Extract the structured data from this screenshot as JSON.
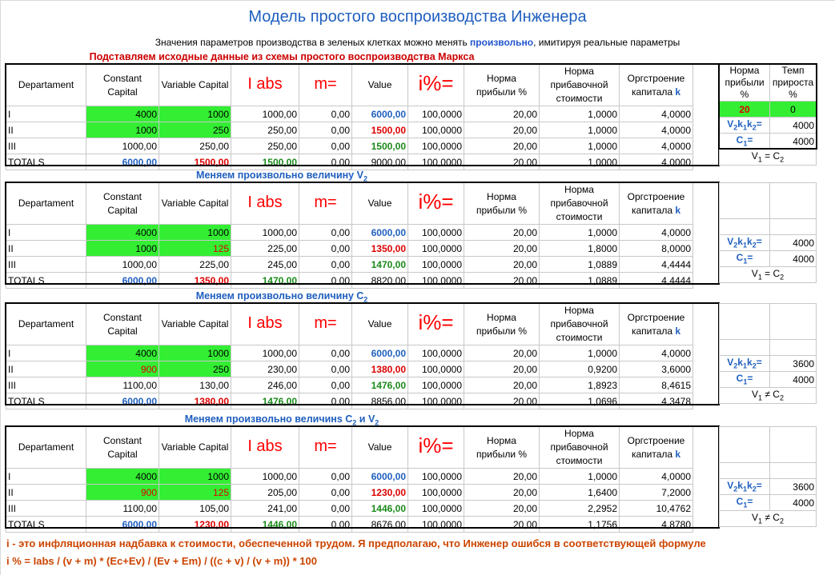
{
  "title": "Модель простого воспроизводства Инженера",
  "subtitle": {
    "before": "Значения параметров производства в зеленых клетках можно менять ",
    "highlight": "произвольно",
    "after": ", имитируя реальные параметры"
  },
  "headers": {
    "departament": "Departament",
    "constant": "Constant Capital",
    "variable": "Variable Capital",
    "iabs": "I abs",
    "m": "m=",
    "value": "Value",
    "ipct": "i%=",
    "profit": "Норма прибыли %",
    "surplus": "Норма прибавочной стоимости",
    "organic": "Оргстроение капитала ",
    "organic_k": "k"
  },
  "side": {
    "profit_header": "Норма прибыли %",
    "growth_header": "Темп прироста %",
    "profit_value": "20",
    "growth_value": "0",
    "v2k1k2_label": "V2k1k2=",
    "c1_label": "C1=",
    "v1_eq_c2": "V1 = C2",
    "v1_ne_c2": "V1 ≠ C2"
  },
  "blocks": [
    {
      "title": "Подставляем исходные данные из схемы простого воспроизводства Маркса",
      "rows": [
        [
          "I",
          "4000",
          "1000",
          "1000,00",
          "0,00",
          "6000,00",
          "100,0000",
          "20,00",
          "1,0000",
          "4,0000"
        ],
        [
          "II",
          "1000",
          "250",
          "250,00",
          "0,00",
          "1500,00",
          "100,0000",
          "20,00",
          "1,0000",
          "4,0000"
        ],
        [
          "III",
          "1000,00",
          "250,00",
          "250,00",
          "0,00",
          "1500,00",
          "100,0000",
          "20,00",
          "1,0000",
          "4,0000"
        ],
        [
          "TOTALS",
          "6000,00",
          "1500,00",
          "1500,00",
          "0,00",
          "9000,00",
          "100,0000",
          "20,00",
          "1,0000",
          "4,0000"
        ]
      ],
      "v2k": "4000",
      "c1": "4000"
    },
    {
      "title": "Меняем произвольно величину V2",
      "rows": [
        [
          "I",
          "4000",
          "1000",
          "1000,00",
          "0,00",
          "6000,00",
          "100,0000",
          "20,00",
          "1,0000",
          "4,0000"
        ],
        [
          "II",
          "1000",
          "125",
          "225,00",
          "0,00",
          "1350,00",
          "100,0000",
          "20,00",
          "1,8000",
          "8,0000"
        ],
        [
          "III",
          "1000,00",
          "225,00",
          "245,00",
          "0,00",
          "1470,00",
          "100,0000",
          "20,00",
          "1,0889",
          "4,4444"
        ],
        [
          "TOTALS",
          "6000,00",
          "1350,00",
          "1470,00",
          "0,00",
          "8820,00",
          "100,0000",
          "20,00",
          "1,0889",
          "4,4444"
        ]
      ],
      "v2k": "4000",
      "c1": "4000"
    },
    {
      "title": "Меняем произвольно величину C2",
      "rows": [
        [
          "I",
          "4000",
          "1000",
          "1000,00",
          "0,00",
          "6000,00",
          "100,0000",
          "20,00",
          "1,0000",
          "4,0000"
        ],
        [
          "II",
          "900",
          "250",
          "230,00",
          "0,00",
          "1380,00",
          "100,0000",
          "20,00",
          "0,9200",
          "3,6000"
        ],
        [
          "III",
          "1100,00",
          "130,00",
          "246,00",
          "0,00",
          "1476,00",
          "100,0000",
          "20,00",
          "1,8923",
          "8,4615"
        ],
        [
          "TOTALS",
          "6000,00",
          "1380,00",
          "1476,00",
          "0,00",
          "8856,00",
          "100,0000",
          "20,00",
          "1,0696",
          "4,3478"
        ]
      ],
      "v2k": "3600",
      "c1": "4000"
    },
    {
      "title": "Меняем произвольно величинs C2 и V2",
      "rows": [
        [
          "I",
          "4000",
          "1000",
          "1000,00",
          "0,00",
          "6000,00",
          "100,0000",
          "20,00",
          "1,0000",
          "4,0000"
        ],
        [
          "II",
          "900",
          "125",
          "205,00",
          "0,00",
          "1230,00",
          "100,0000",
          "20,00",
          "1,6400",
          "7,2000"
        ],
        [
          "III",
          "1100,00",
          "105,00",
          "241,00",
          "0,00",
          "1446,00",
          "100,0000",
          "20,00",
          "2,2952",
          "10,4762"
        ],
        [
          "TOTALS",
          "6000,00",
          "1230,00",
          "1446,00",
          "0,00",
          "8676,00",
          "100,0000",
          "20,00",
          "1,1756",
          "4,8780"
        ]
      ],
      "v2k": "3600",
      "c1": "4000"
    }
  ],
  "footer": {
    "line1": "i - это инфляционная надбавка к стоимости, обеспеченной трудом. Я предполагаю, что Инженер ошибся в соответствующей формуле",
    "line2": "i % = Iabs / (v + m) * (Ec+Ev) / (Ev + Em) / ((c + v) / (v + m)) * 100"
  },
  "colors": {
    "accent_blue": "#1f5fbf",
    "red": "#dd0000",
    "green_cell": "#33ee33",
    "dark_green": "#1a8a1a",
    "footer": "#cc4400"
  }
}
